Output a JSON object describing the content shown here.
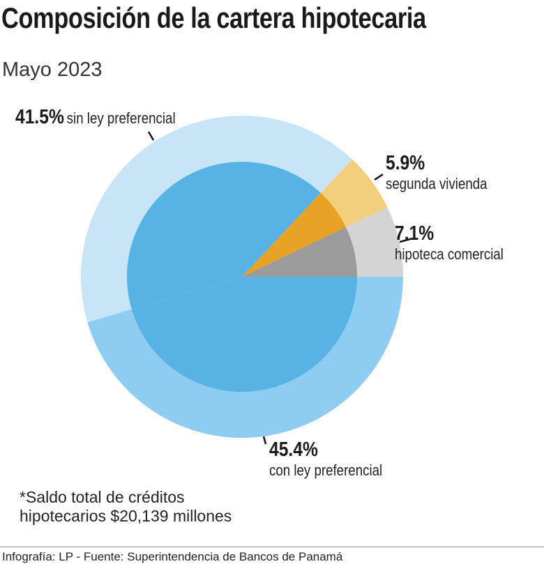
{
  "title": "Composición de la cartera hipotecaria",
  "subtitle": "Mayo 2023",
  "chart_data": {
    "type": "pie",
    "title": "Composición de la cartera hipotecaria",
    "subtitle": "Mayo 2023",
    "slices": [
      {
        "pct_label": "7.1%",
        "label": "hipoteca comercial",
        "value": 7.1,
        "outer_color": "#d4d4d4",
        "inner_color": "#9b9b9b"
      },
      {
        "pct_label": "5.9%",
        "label": "segunda vivienda",
        "value": 5.9,
        "outer_color": "#f3cf7d",
        "inner_color": "#e8a225"
      },
      {
        "pct_label": "41.5%",
        "label": "sin ley preferencial",
        "value": 41.5,
        "outer_color": "#c7e5f7",
        "inner_color": "#58b3e5"
      },
      {
        "pct_label": "45.4%",
        "label": "con ley preferencial",
        "value": 45.4,
        "outer_color": "#8ecdf1",
        "inner_color": "#58b3e5"
      }
    ]
  },
  "note": {
    "line1": "*Saldo total de créditos",
    "line2": "hipotecarios $20,139 millones"
  },
  "source": "Infografía: LP - Fuente: Superintendencia de Bancos de Panamá"
}
